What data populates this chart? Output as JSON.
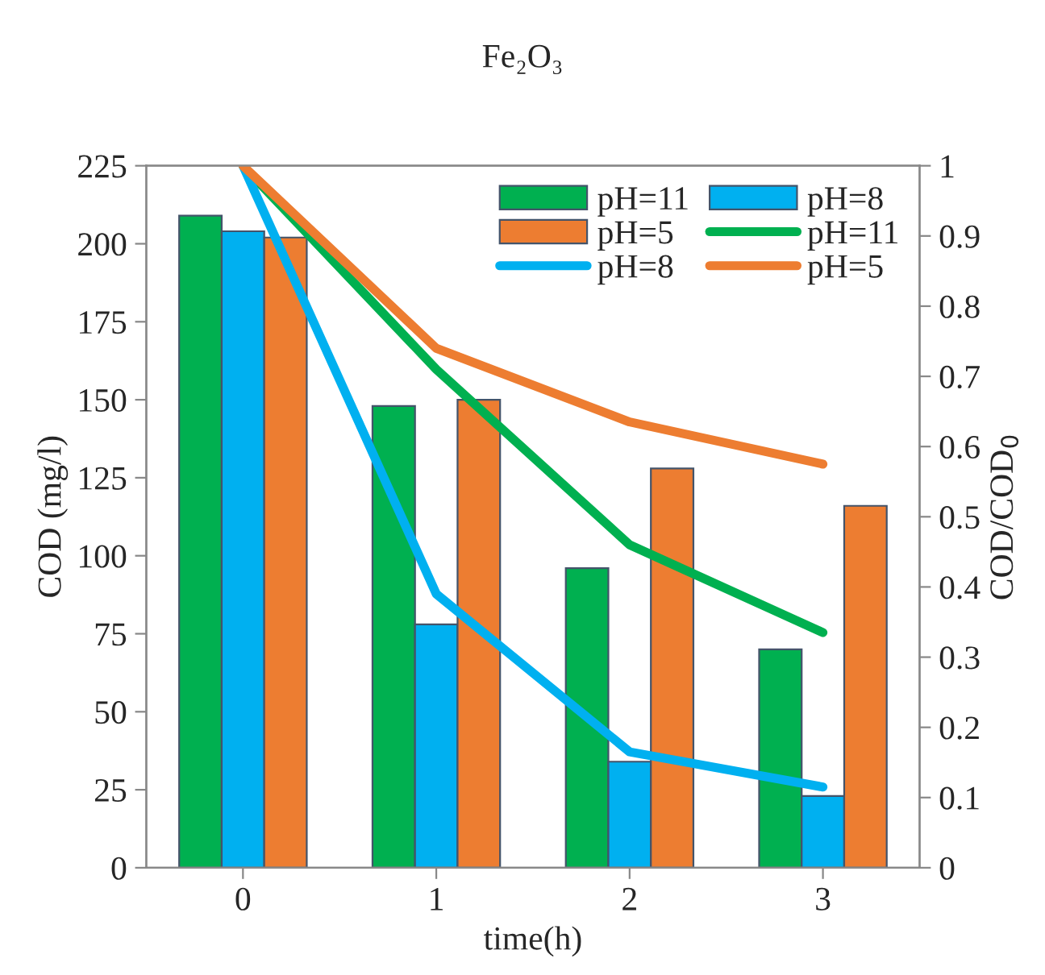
{
  "chart_data": {
    "type": "bar",
    "title": "Fe₂O₃",
    "xlabel": "time(h)",
    "ylabel": "COD (mg/l)",
    "y2label": "COD/COD$_{0}$",
    "categories": [
      "0",
      "1",
      "2",
      "3"
    ],
    "series": [
      {
        "name": "pH=11",
        "color": "#00b050",
        "values": [
          209,
          148,
          96,
          70
        ]
      },
      {
        "name": "pH=8",
        "color": "#00b0f0",
        "values": [
          204,
          78,
          34,
          23
        ]
      },
      {
        "name": "pH=5",
        "color": "#ed7d31",
        "values": [
          202,
          150,
          128,
          116
        ]
      },
      {
        "name": "pH=11",
        "type": "line",
        "axis": "y2",
        "color": "#00b050",
        "values": [
          1,
          0.71,
          0.46,
          0.335
        ]
      },
      {
        "name": "pH=8",
        "type": "line",
        "axis": "y2",
        "color": "#00b0f0",
        "values": [
          1,
          0.39,
          0.165,
          0.115
        ]
      },
      {
        "name": "pH=5",
        "type": "line",
        "axis": "y2",
        "color": "#ed7d31",
        "values": [
          1,
          0.74,
          0.635,
          0.575
        ]
      }
    ],
    "ylim": [
      0,
      225
    ],
    "yticks": [
      0,
      25,
      50,
      75,
      100,
      125,
      150,
      175,
      200,
      225
    ],
    "y2lim": [
      0,
      1
    ],
    "y2ticks": [
      0,
      0.1,
      0.2,
      0.3,
      0.4,
      0.5,
      0.6,
      0.7,
      0.8,
      0.9,
      1
    ],
    "legend": "top right",
    "grid": false,
    "marker": "none",
    "line_style": "solid"
  }
}
